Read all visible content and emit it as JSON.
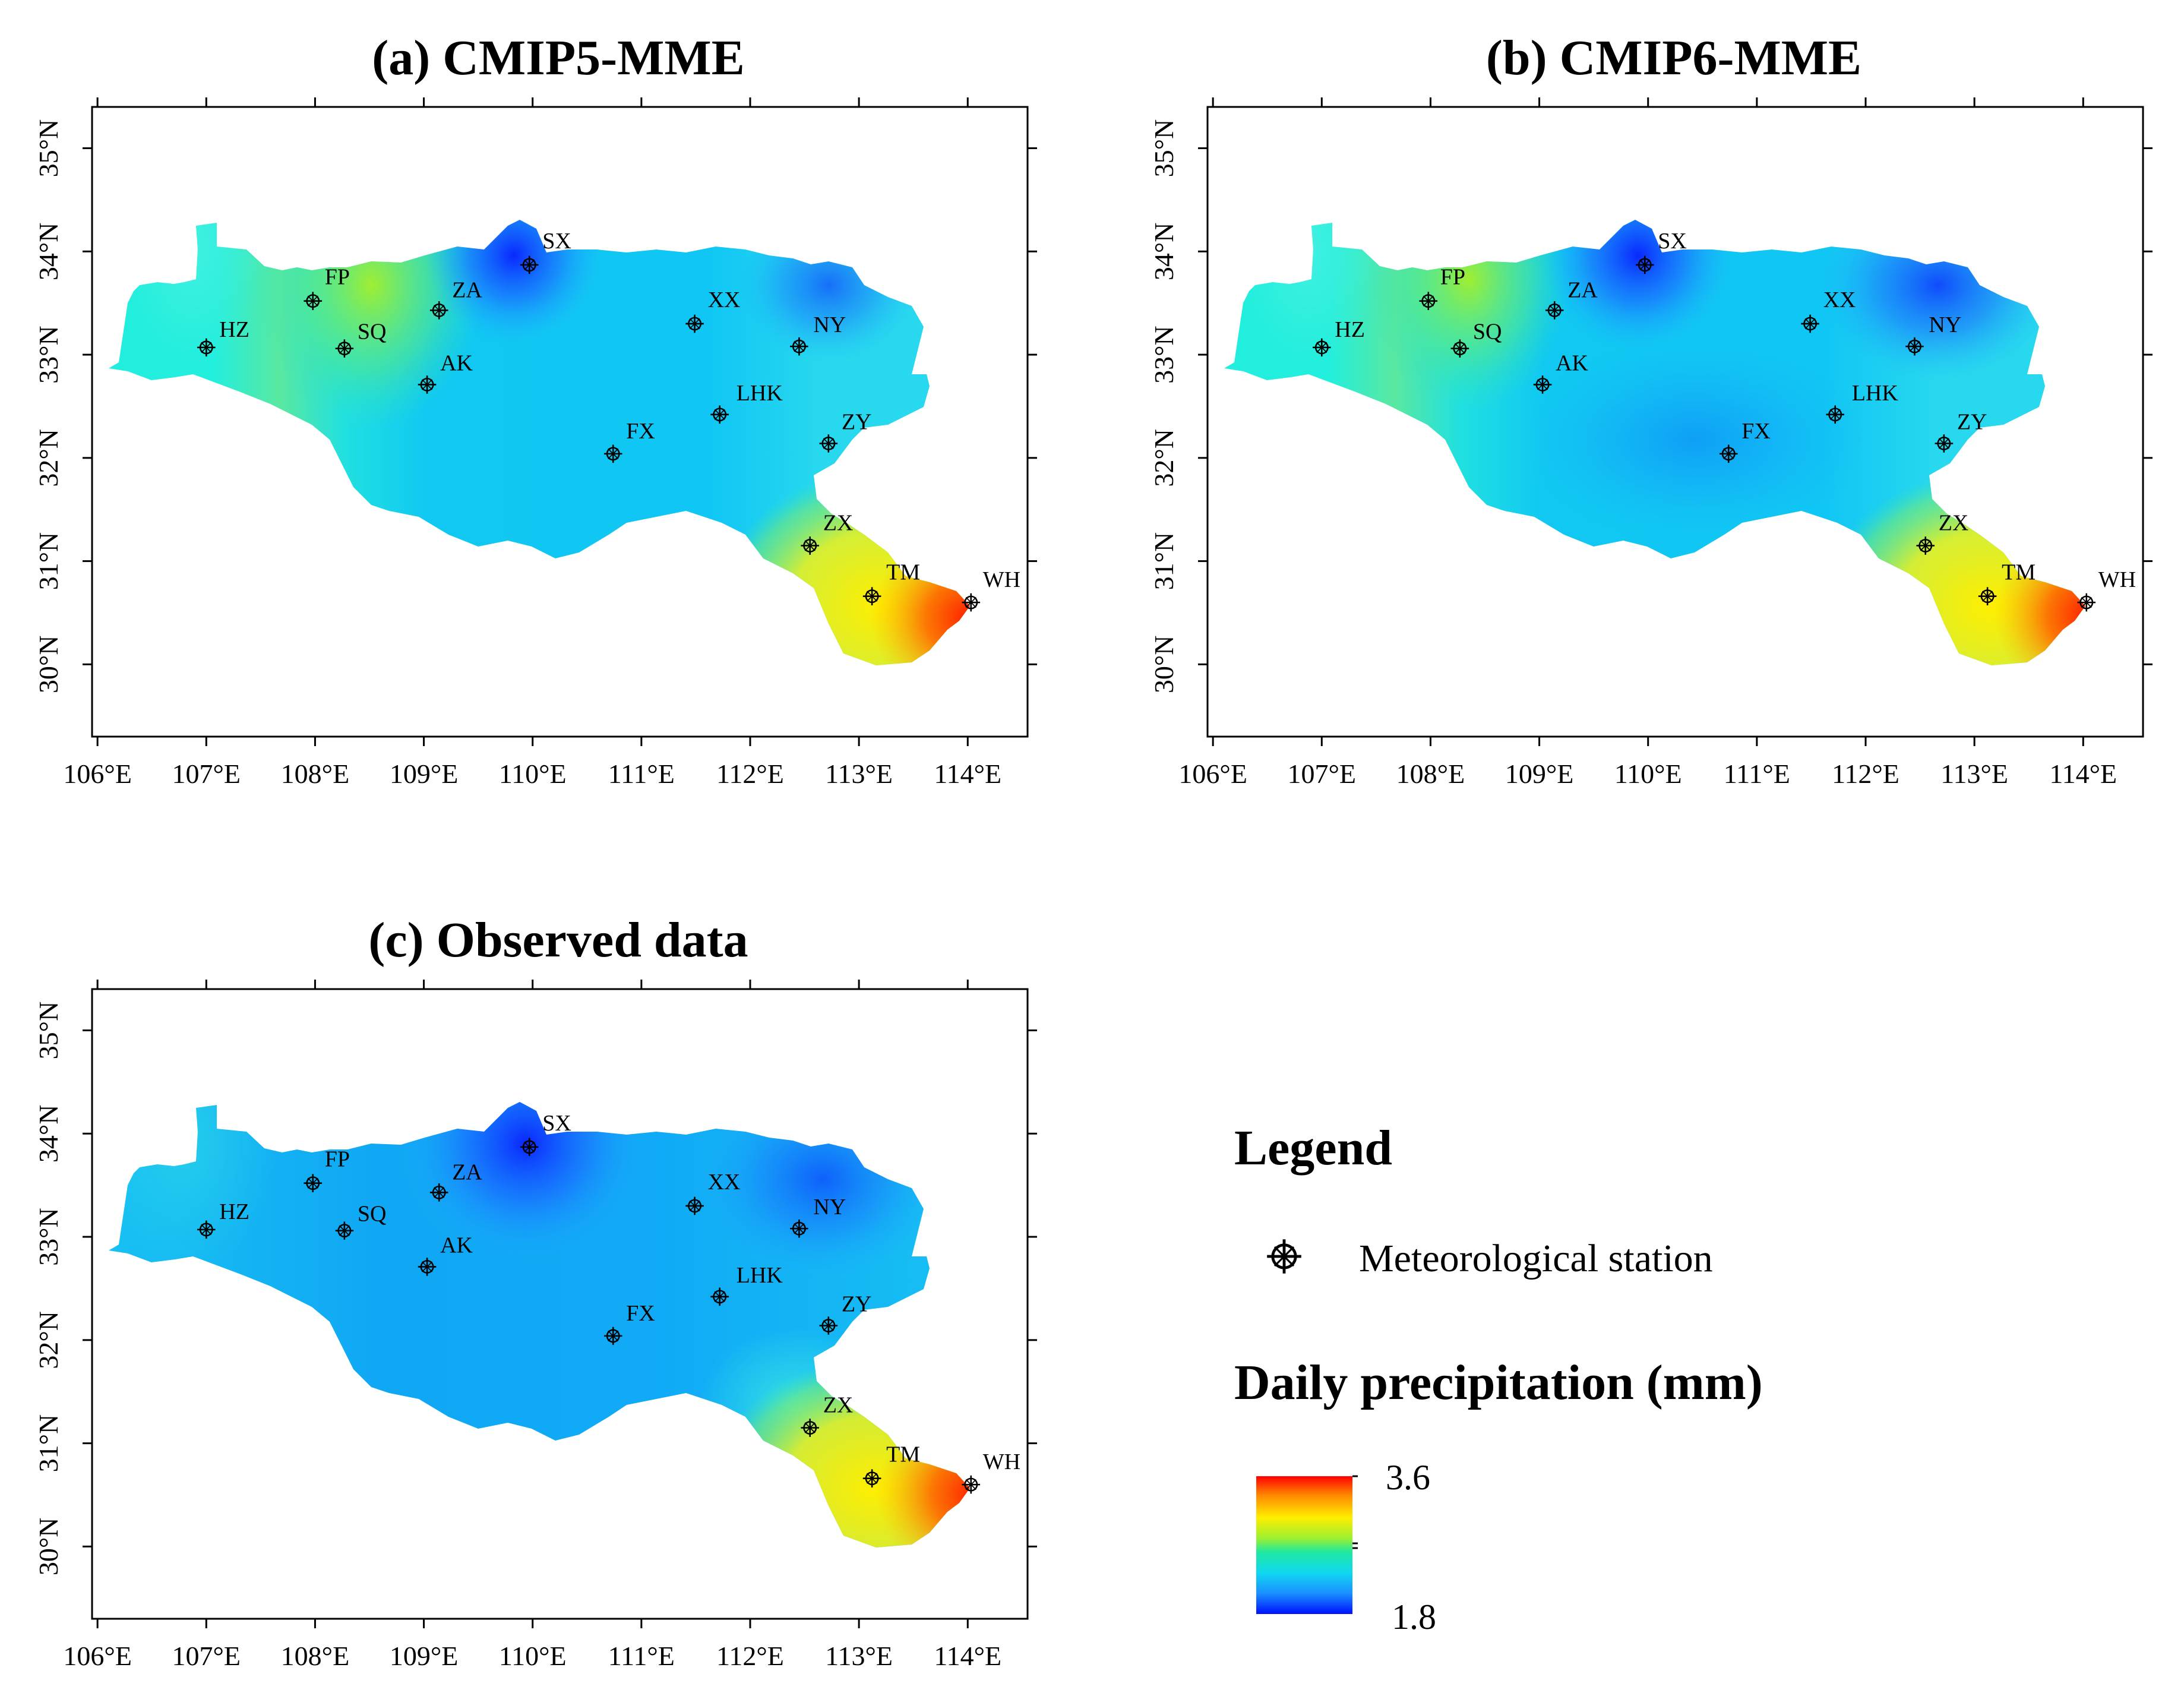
{
  "panels": [
    {
      "id": "cmip5",
      "title": "(a) CMIP5-MME",
      "stations": [
        {
          "code": "HZ",
          "lon": 107.0,
          "lat": 33.07
        },
        {
          "code": "FP",
          "lon": 107.98,
          "lat": 33.52
        },
        {
          "code": "SQ",
          "lon": 108.27,
          "lat": 33.06
        },
        {
          "code": "ZA",
          "lon": 109.14,
          "lat": 33.43
        },
        {
          "code": "AK",
          "lon": 109.03,
          "lat": 32.71
        },
        {
          "code": "SX",
          "lon": 109.97,
          "lat": 33.87
        },
        {
          "code": "XX",
          "lon": 111.49,
          "lat": 33.3
        },
        {
          "code": "NY",
          "lon": 112.45,
          "lat": 33.08
        },
        {
          "code": "LHK",
          "lon": 111.72,
          "lat": 32.42
        },
        {
          "code": "ZY",
          "lon": 112.72,
          "lat": 32.14
        },
        {
          "code": "FX",
          "lon": 110.74,
          "lat": 32.04
        },
        {
          "code": "ZX",
          "lon": 112.55,
          "lat": 31.15
        },
        {
          "code": "TM",
          "lon": 113.12,
          "lat": 30.66
        },
        {
          "code": "WH",
          "lon": 114.03,
          "lat": 30.6
        }
      ]
    },
    {
      "id": "cmip6",
      "title": "(b) CMIP6-MME",
      "stations": [
        {
          "code": "HZ",
          "lon": 107.0,
          "lat": 33.07
        },
        {
          "code": "FP",
          "lon": 107.98,
          "lat": 33.52
        },
        {
          "code": "SQ",
          "lon": 108.27,
          "lat": 33.06
        },
        {
          "code": "ZA",
          "lon": 109.14,
          "lat": 33.43
        },
        {
          "code": "AK",
          "lon": 109.03,
          "lat": 32.71
        },
        {
          "code": "SX",
          "lon": 109.97,
          "lat": 33.87
        },
        {
          "code": "XX",
          "lon": 111.49,
          "lat": 33.3
        },
        {
          "code": "NY",
          "lon": 112.45,
          "lat": 33.08
        },
        {
          "code": "LHK",
          "lon": 111.72,
          "lat": 32.42
        },
        {
          "code": "ZY",
          "lon": 112.72,
          "lat": 32.14
        },
        {
          "code": "FX",
          "lon": 110.74,
          "lat": 32.04
        },
        {
          "code": "ZX",
          "lon": 112.55,
          "lat": 31.15
        },
        {
          "code": "TM",
          "lon": 113.12,
          "lat": 30.66
        },
        {
          "code": "WH",
          "lon": 114.03,
          "lat": 30.6
        }
      ]
    },
    {
      "id": "observed",
      "title": "(c) Observed data",
      "stations": [
        {
          "code": "HZ",
          "lon": 107.0,
          "lat": 33.07
        },
        {
          "code": "FP",
          "lon": 107.98,
          "lat": 33.52
        },
        {
          "code": "SQ",
          "lon": 108.27,
          "lat": 33.06
        },
        {
          "code": "ZA",
          "lon": 109.14,
          "lat": 33.43
        },
        {
          "code": "AK",
          "lon": 109.03,
          "lat": 32.71
        },
        {
          "code": "SX",
          "lon": 109.97,
          "lat": 33.87
        },
        {
          "code": "XX",
          "lon": 111.49,
          "lat": 33.3
        },
        {
          "code": "NY",
          "lon": 112.45,
          "lat": 33.08
        },
        {
          "code": "LHK",
          "lon": 111.72,
          "lat": 32.42
        },
        {
          "code": "ZY",
          "lon": 112.72,
          "lat": 32.14
        },
        {
          "code": "FX",
          "lon": 110.74,
          "lat": 32.04
        },
        {
          "code": "ZX",
          "lon": 112.55,
          "lat": 31.15
        },
        {
          "code": "TM",
          "lon": 113.12,
          "lat": 30.66
        },
        {
          "code": "WH",
          "lon": 114.03,
          "lat": 30.6
        }
      ]
    }
  ],
  "axes": {
    "lon_ticks": [
      106,
      107,
      108,
      109,
      110,
      111,
      112,
      113,
      114
    ],
    "lat_ticks": [
      30,
      31,
      32,
      33,
      34,
      35
    ],
    "lon_labels": [
      "106°E",
      "107°E",
      "108°E",
      "109°E",
      "110°E",
      "111°E",
      "112°E",
      "113°E",
      "114°E"
    ],
    "lat_labels": [
      "30°N",
      "31°N",
      "32°N",
      "33°N",
      "34°N",
      "35°N"
    ],
    "lon_range": [
      105.95,
      114.55
    ],
    "lat_range": [
      29.3,
      35.4
    ]
  },
  "legend": {
    "title": "Legend",
    "station_label": "Meteorological station",
    "colorbar_title": "Daily precipitation (mm)",
    "max_label": "3.6",
    "min_label": "1.8",
    "max_value": 3.6,
    "min_value": 1.8
  },
  "colors": {
    "ramp": [
      "#0000ff",
      "#0096ff",
      "#00f0f0",
      "#00e68c",
      "#96ee2a",
      "#ffff00",
      "#ffa000",
      "#ff0000"
    ]
  }
}
